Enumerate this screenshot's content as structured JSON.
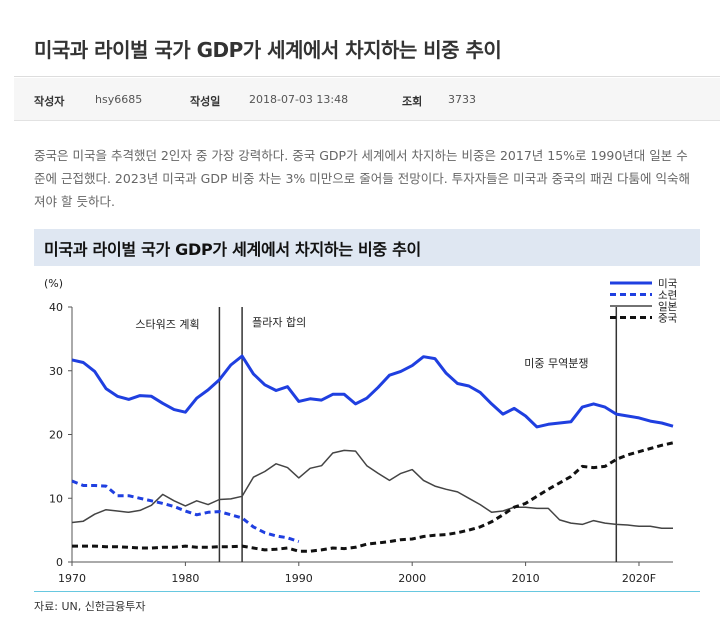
{
  "page": {
    "title": "미국과 라이벌 국가 GDP가 세계에서 차지하는 비중 추이",
    "meta": {
      "author_label": "작성자",
      "author": "hsy6685",
      "date_label": "작성일",
      "date": "2018-07-03 13:48",
      "views_label": "조회",
      "views": "3733"
    },
    "body": "중국은 미국을 추격했던 2인자 중 가장 강력하다. 중국 GDP가 세계에서 차지하는 비중은 2017년 15%로 1990년대 일본 수준에 근접했다. 2023년 미국과 GDP 비중 차는 3% 미만으로 줄어들 전망이다. 투자자들은 미국과 중국의 패권 다툼에 익숙해져야 할 듯하다.",
    "source": "자료: UN, 신한금융투자"
  },
  "chart_data": {
    "type": "line",
    "title": "미국과 라이벌 국가 GDP가 세계에서 차지하는 비중 추이",
    "ylabel": "(%)",
    "ylim": [
      0,
      40
    ],
    "yticks": [
      0,
      10,
      20,
      30,
      40
    ],
    "xlim": [
      1970,
      2023
    ],
    "xticks": [
      {
        "value": 1970,
        "label": "1970"
      },
      {
        "value": 1980,
        "label": "1980"
      },
      {
        "value": 1990,
        "label": "1990"
      },
      {
        "value": 2000,
        "label": "2000"
      },
      {
        "value": 2010,
        "label": "2010"
      },
      {
        "value": 2020,
        "label": "2020F"
      }
    ],
    "grid": false,
    "legend_position": "top-right",
    "annotations": [
      {
        "x": 1983,
        "label": "스타워즈 계획"
      },
      {
        "x": 1985,
        "label": "플라자 합의"
      },
      {
        "x": 2018,
        "label": "미중 무역분쟁"
      }
    ],
    "series": [
      {
        "name": "미국",
        "color": "#1f3fe0",
        "style": "solid",
        "width": 3,
        "x": [
          1970,
          1971,
          1972,
          1973,
          1974,
          1975,
          1976,
          1977,
          1978,
          1979,
          1980,
          1981,
          1982,
          1983,
          1984,
          1985,
          1986,
          1987,
          1988,
          1989,
          1990,
          1991,
          1992,
          1993,
          1994,
          1995,
          1996,
          1997,
          1998,
          1999,
          2000,
          2001,
          2002,
          2003,
          2004,
          2005,
          2006,
          2007,
          2008,
          2009,
          2010,
          2011,
          2012,
          2013,
          2014,
          2015,
          2016,
          2017,
          2018,
          2019,
          2020,
          2021,
          2022,
          2023
        ],
        "values": [
          31.7,
          31.3,
          29.9,
          27.2,
          26.0,
          25.5,
          26.1,
          26.0,
          24.9,
          23.9,
          23.5,
          25.7,
          27.0,
          28.6,
          30.9,
          32.3,
          29.5,
          27.8,
          26.9,
          27.5,
          25.2,
          25.6,
          25.4,
          26.3,
          26.3,
          24.8,
          25.7,
          27.4,
          29.3,
          29.9,
          30.8,
          32.2,
          31.9,
          29.6,
          28.0,
          27.6,
          26.6,
          24.8,
          23.2,
          24.1,
          22.9,
          21.2,
          21.6,
          21.8,
          22.0,
          24.3,
          24.8,
          24.3,
          23.2,
          22.9,
          22.6,
          22.1,
          21.8,
          21.3
        ]
      },
      {
        "name": "소련",
        "color": "#1f3fe0",
        "style": "dashed",
        "width": 3,
        "x": [
          1970,
          1971,
          1972,
          1973,
          1974,
          1975,
          1976,
          1977,
          1978,
          1979,
          1980,
          1981,
          1982,
          1983,
          1984,
          1985,
          1986,
          1987,
          1988,
          1989,
          1990
        ],
        "values": [
          12.7,
          12.0,
          12.0,
          11.9,
          10.4,
          10.4,
          10.0,
          9.6,
          9.2,
          8.7,
          8.0,
          7.4,
          7.8,
          7.9,
          7.4,
          6.9,
          5.5,
          4.6,
          4.1,
          3.8,
          3.2
        ]
      },
      {
        "name": "일본",
        "color": "#444444",
        "style": "solid",
        "width": 1.5,
        "x": [
          1970,
          1971,
          1972,
          1973,
          1974,
          1975,
          1976,
          1977,
          1978,
          1979,
          1980,
          1981,
          1982,
          1983,
          1984,
          1985,
          1986,
          1987,
          1988,
          1989,
          1990,
          1991,
          1992,
          1993,
          1994,
          1995,
          1996,
          1997,
          1998,
          1999,
          2000,
          2001,
          2002,
          2003,
          2004,
          2005,
          2006,
          2007,
          2008,
          2009,
          2010,
          2011,
          2012,
          2013,
          2014,
          2015,
          2016,
          2017,
          2018,
          2019,
          2020,
          2021,
          2022,
          2023
        ],
        "values": [
          6.2,
          6.4,
          7.5,
          8.2,
          8.0,
          7.8,
          8.1,
          8.9,
          10.6,
          9.6,
          8.8,
          9.6,
          9.0,
          9.8,
          9.9,
          10.3,
          13.3,
          14.2,
          15.4,
          14.8,
          13.2,
          14.7,
          15.1,
          17.1,
          17.5,
          17.4,
          15.1,
          13.9,
          12.8,
          13.9,
          14.5,
          12.8,
          11.9,
          11.4,
          11.0,
          10.0,
          9.0,
          7.8,
          8.0,
          8.6,
          8.6,
          8.4,
          8.4,
          6.6,
          6.1,
          5.9,
          6.5,
          6.1,
          5.9,
          5.8,
          5.6,
          5.6,
          5.3,
          5.3
        ]
      },
      {
        "name": "중국",
        "color": "#111111",
        "style": "dashed",
        "width": 3,
        "x": [
          1970,
          1971,
          1972,
          1973,
          1974,
          1975,
          1976,
          1977,
          1978,
          1979,
          1980,
          1981,
          1982,
          1983,
          1984,
          1985,
          1986,
          1987,
          1988,
          1989,
          1990,
          1991,
          1992,
          1993,
          1994,
          1995,
          1996,
          1997,
          1998,
          1999,
          2000,
          2001,
          2002,
          2003,
          2004,
          2005,
          2006,
          2007,
          2008,
          2009,
          2010,
          2011,
          2012,
          2013,
          2014,
          2015,
          2016,
          2017,
          2018,
          2019,
          2020,
          2021,
          2022,
          2023
        ],
        "values": [
          2.5,
          2.5,
          2.5,
          2.4,
          2.4,
          2.3,
          2.2,
          2.2,
          2.3,
          2.3,
          2.5,
          2.3,
          2.3,
          2.4,
          2.4,
          2.5,
          2.2,
          1.9,
          2.0,
          2.2,
          1.7,
          1.7,
          1.9,
          2.2,
          2.1,
          2.3,
          2.8,
          3.0,
          3.2,
          3.5,
          3.6,
          4.0,
          4.2,
          4.3,
          4.6,
          5.0,
          5.5,
          6.3,
          7.4,
          8.6,
          9.2,
          10.3,
          11.4,
          12.4,
          13.4,
          15.0,
          14.8,
          15.0,
          16.1,
          16.8,
          17.3,
          17.8,
          18.3,
          18.7
        ]
      }
    ]
  }
}
